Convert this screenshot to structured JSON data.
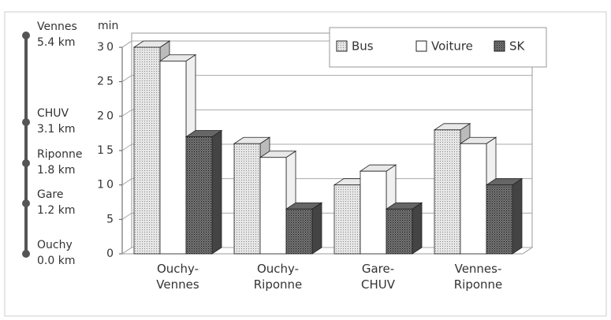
{
  "route": {
    "stops": [
      {
        "name": "Vennes",
        "distance": "5.4 km"
      },
      {
        "name": "CHUV",
        "distance": "3.1 km"
      },
      {
        "name": "Riponne",
        "distance": "1.8 km"
      },
      {
        "name": "Gare",
        "distance": "1.2 km"
      },
      {
        "name": "Ouchy",
        "distance": "0.0 km"
      }
    ]
  },
  "chart_data": {
    "type": "bar3d",
    "y_label": "min",
    "categories": [
      "Ouchy-Vennes",
      "Ouchy-Riponne",
      "Gare-CHUV",
      "Vennes-Riponne"
    ],
    "series": [
      {
        "name": "Bus",
        "color": "#d4d4d4",
        "values": [
          30,
          16,
          10,
          18
        ]
      },
      {
        "name": "Voiture",
        "color": "#ffffff",
        "values": [
          28,
          14,
          12,
          16
        ]
      },
      {
        "name": "SK",
        "color": "#5a5a5a",
        "values": [
          17,
          6.5,
          6.5,
          10
        ]
      }
    ],
    "ylim": [
      0,
      30
    ],
    "yticks": [
      0,
      5,
      10,
      15,
      20,
      25,
      30
    ],
    "grid": true,
    "legend": "top-right"
  }
}
